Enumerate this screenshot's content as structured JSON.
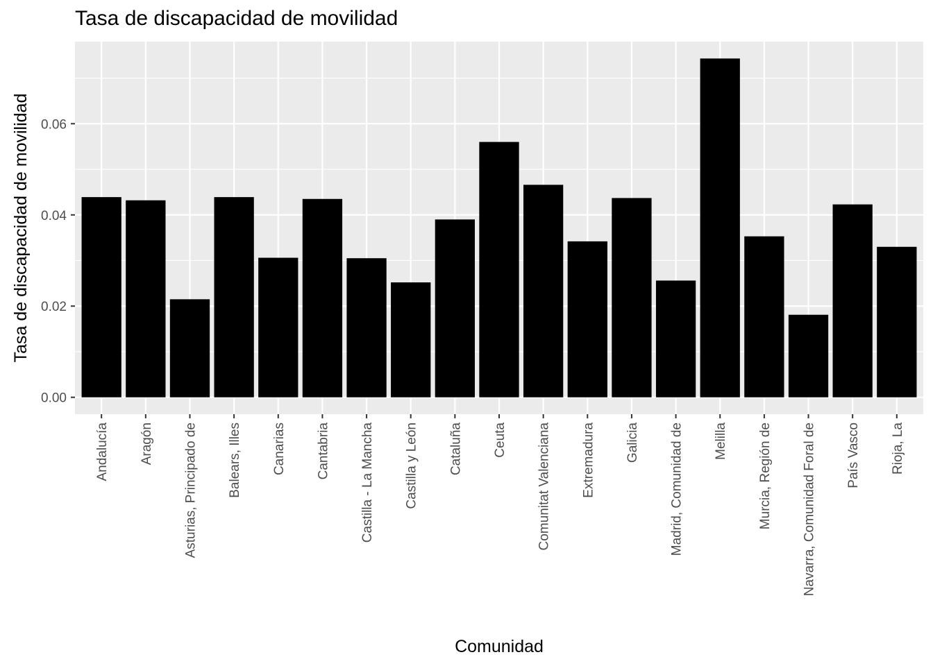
{
  "chart_data": {
    "type": "bar",
    "title": "Tasa de discapacidad de movilidad",
    "xlabel": "Comunidad",
    "ylabel": "Tasa de discapacidad de movilidad",
    "categories": [
      "Andalucía",
      "Aragón",
      "Asturias, Principado de",
      "Balears, Illes",
      "Canarias",
      "Cantabria",
      "Castilla - La Mancha",
      "Castilla y León",
      "Cataluña",
      "Ceuta",
      "Comunitat Valenciana",
      "Extremadura",
      "Galicia",
      "Madrid, Comunidad de",
      "Melilla",
      "Murcia, Región de",
      "Navarra, Comunidad Foral de",
      "País Vasco",
      "Rioja, La"
    ],
    "values": [
      0.0439,
      0.0432,
      0.0215,
      0.0439,
      0.0306,
      0.0435,
      0.0305,
      0.0252,
      0.039,
      0.056,
      0.0466,
      0.0342,
      0.0437,
      0.0256,
      0.0743,
      0.0353,
      0.0181,
      0.0423,
      0.033
    ],
    "yticks": [
      0,
      0.02,
      0.04,
      0.06
    ],
    "ytick_labels": [
      "0.00",
      "0.02",
      "0.04",
      "0.06"
    ],
    "ylim": [
      -0.0037,
      0.078
    ],
    "grid": true,
    "legend": "none",
    "colors": {
      "bar": "#000000",
      "panel": "#ebebeb",
      "grid": "#ffffff"
    }
  }
}
